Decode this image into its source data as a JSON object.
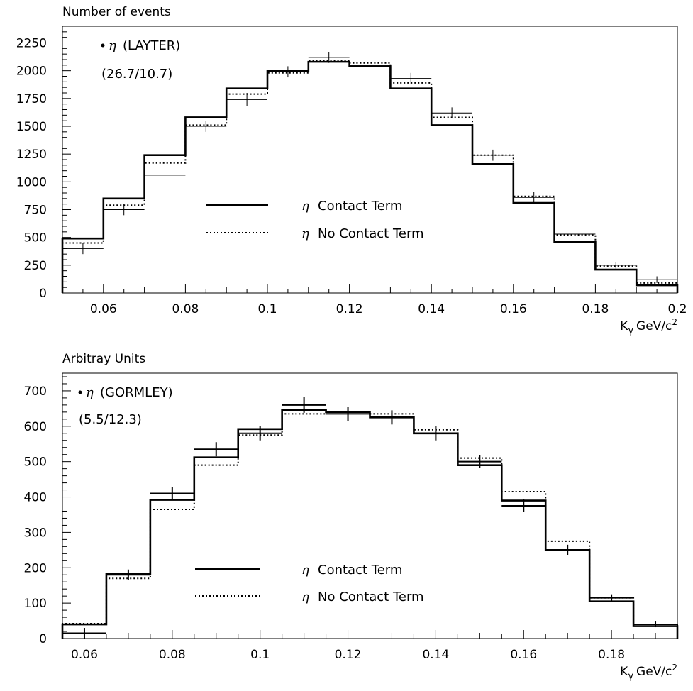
{
  "chart_data": [
    {
      "type": "histogram",
      "ylabel": "Number of events",
      "xlabel": "K",
      "xlabel_sub": "γ",
      "xlabel_unit": "GeV/c",
      "xlabel_sup": "2",
      "xlim": [
        0.05,
        0.2
      ],
      "ylim": [
        0,
        2400
      ],
      "xticks": [
        0.06,
        0.08,
        0.1,
        0.12,
        0.14,
        0.16,
        0.18,
        0.2
      ],
      "xtick_labels": [
        "0.06",
        "0.08",
        "0.1",
        "0.12",
        "0.14",
        "0.16",
        "0.18",
        "0.2"
      ],
      "yticks": [
        0,
        250,
        500,
        750,
        1000,
        1250,
        1500,
        1750,
        2000,
        2250
      ],
      "ytick_labels": [
        "0",
        "250",
        "500",
        "750",
        "1000",
        "1250",
        "1500",
        "1750",
        "2000",
        "2250"
      ],
      "annotation": {
        "marker": "•",
        "symbol": "η",
        "name": "(LAYTER)",
        "ratio": "(26.7/10.7)"
      },
      "legend": {
        "placement": "center",
        "items": [
          {
            "symbol": "η",
            "label": "Contact Term",
            "style": "solid"
          },
          {
            "symbol": "η",
            "label": "No Contact Term",
            "style": "dotted"
          }
        ]
      },
      "bin_edges": [
        0.05,
        0.06,
        0.07,
        0.08,
        0.09,
        0.1,
        0.11,
        0.12,
        0.13,
        0.14,
        0.15,
        0.16,
        0.17,
        0.18,
        0.19,
        0.2
      ],
      "series": [
        {
          "name": "Contact Term",
          "style": "solid",
          "values": [
            490,
            850,
            1240,
            1580,
            1840,
            2000,
            2080,
            2040,
            1840,
            1510,
            1160,
            810,
            460,
            210,
            70
          ]
        },
        {
          "name": "No Contact Term",
          "style": "dotted",
          "values": [
            450,
            790,
            1170,
            1510,
            1790,
            1980,
            2090,
            2070,
            1890,
            1580,
            1240,
            870,
            520,
            240,
            90
          ]
        }
      ],
      "points": {
        "name": "LAYTER",
        "x": [
          0.055,
          0.065,
          0.075,
          0.085,
          0.095,
          0.105,
          0.115,
          0.125,
          0.135,
          0.145,
          0.155,
          0.165,
          0.175,
          0.185,
          0.195
        ],
        "y": [
          400,
          750,
          1060,
          1500,
          1740,
          1990,
          2120,
          2050,
          1930,
          1620,
          1240,
          860,
          530,
          250,
          120
        ],
        "yerr": [
          50,
          50,
          60,
          50,
          60,
          50,
          50,
          50,
          50,
          50,
          50,
          50,
          40,
          30,
          30
        ]
      }
    },
    {
      "type": "histogram",
      "ylabel": "Arbitray Units",
      "xlabel": "K",
      "xlabel_sub": "γ",
      "xlabel_unit": "GeV/c",
      "xlabel_sup": "2",
      "xlim": [
        0.055,
        0.195
      ],
      "ylim": [
        0,
        750
      ],
      "xticks": [
        0.06,
        0.08,
        0.1,
        0.12,
        0.14,
        0.16,
        0.18
      ],
      "xtick_labels": [
        "0.06",
        "0.08",
        "0.1",
        "0.12",
        "0.14",
        "0.16",
        "0.18"
      ],
      "yticks": [
        0,
        100,
        200,
        300,
        400,
        500,
        600,
        700
      ],
      "ytick_labels": [
        "0",
        "100",
        "200",
        "300",
        "400",
        "500",
        "600",
        "700"
      ],
      "annotation": {
        "marker": "•",
        "symbol": "η",
        "name": "(GORMLEY)",
        "ratio": "(5.5/12.3)"
      },
      "legend": {
        "placement": "center",
        "items": [
          {
            "symbol": "η",
            "label": "Contact Term",
            "style": "solid"
          },
          {
            "symbol": "η",
            "label": "No Contact Term",
            "style": "dotted"
          }
        ]
      },
      "bin_edges": [
        0.055,
        0.065,
        0.075,
        0.085,
        0.095,
        0.105,
        0.115,
        0.125,
        0.135,
        0.145,
        0.155,
        0.165,
        0.175,
        0.185,
        0.195
      ],
      "series": [
        {
          "name": "Contact Term",
          "style": "solid",
          "values": [
            40,
            182,
            392,
            512,
            592,
            645,
            640,
            625,
            580,
            490,
            390,
            250,
            105,
            35
          ]
        },
        {
          "name": "No Contact Term",
          "style": "dotted",
          "values": [
            42,
            170,
            365,
            490,
            575,
            635,
            640,
            635,
            590,
            510,
            415,
            275,
            115,
            40
          ]
        }
      ],
      "points": {
        "name": "GORMLEY",
        "x": [
          0.06,
          0.07,
          0.08,
          0.09,
          0.1,
          0.11,
          0.12,
          0.13,
          0.14,
          0.15,
          0.16,
          0.17,
          0.18,
          0.19
        ],
        "y": [
          15,
          180,
          410,
          535,
          580,
          660,
          635,
          625,
          580,
          500,
          375,
          250,
          115,
          40
        ],
        "yerr": [
          15,
          15,
          18,
          20,
          20,
          22,
          20,
          20,
          20,
          18,
          18,
          15,
          10,
          8
        ]
      }
    }
  ]
}
